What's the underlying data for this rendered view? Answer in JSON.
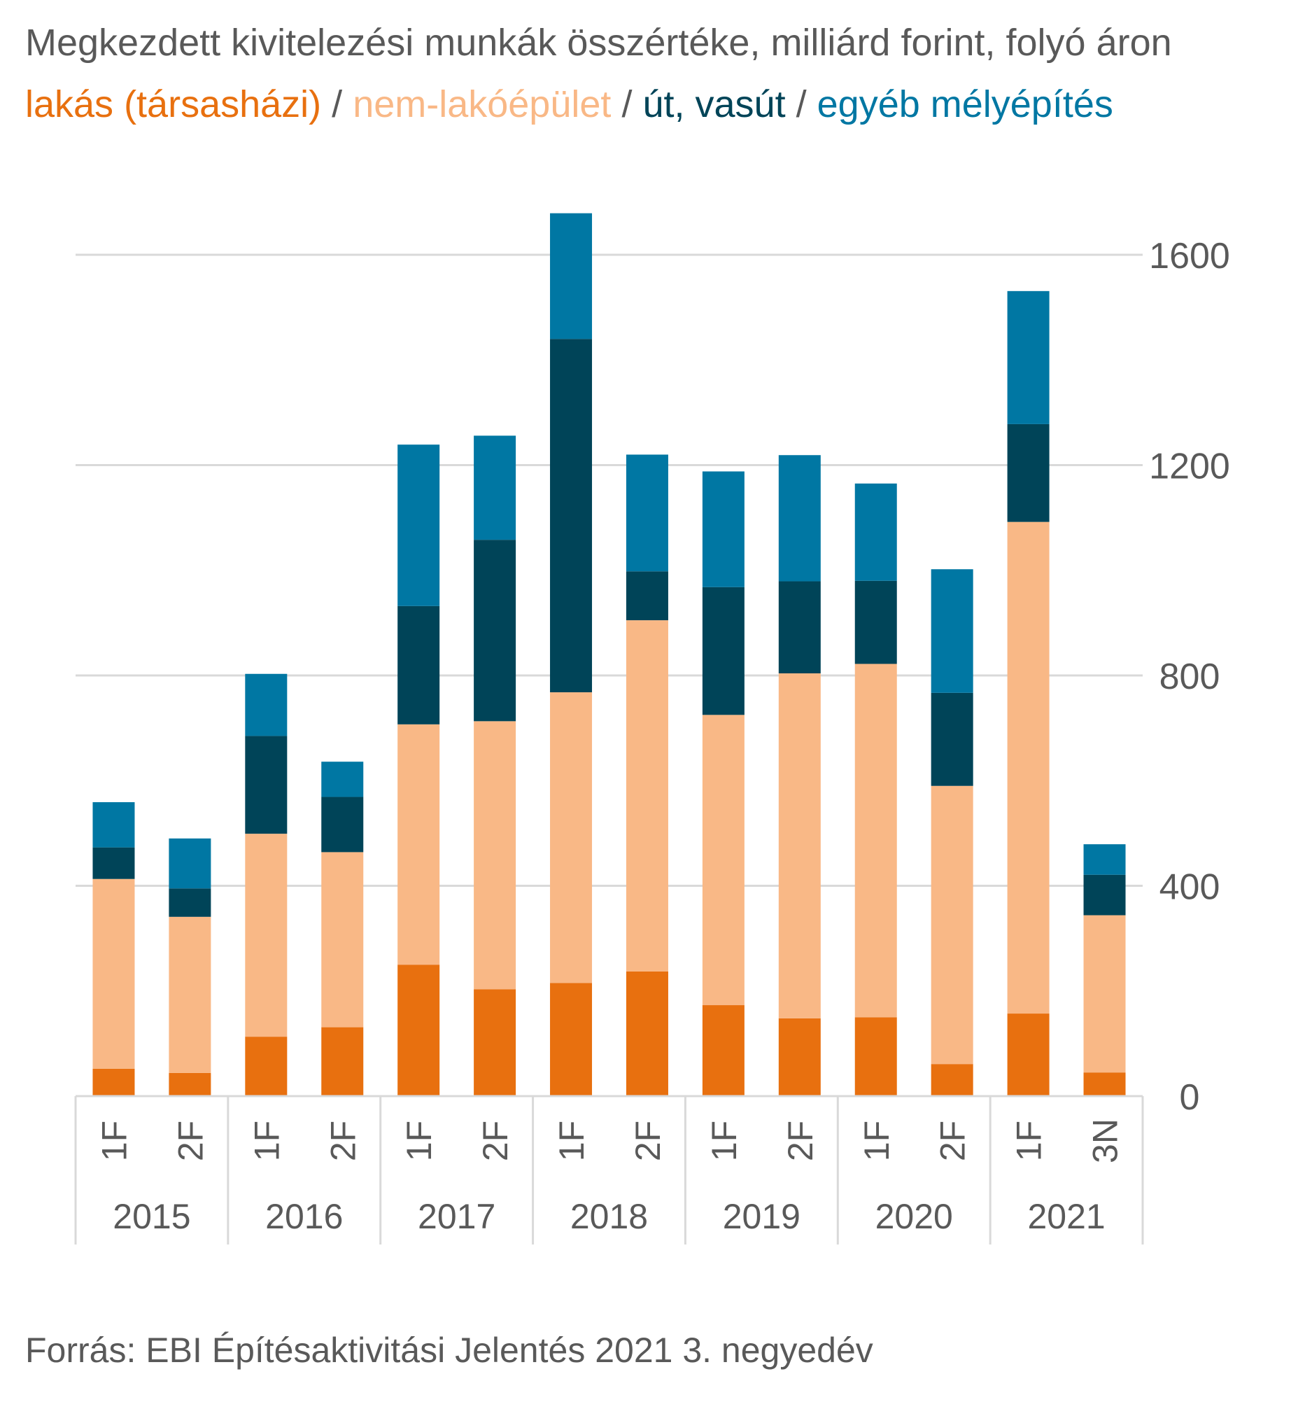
{
  "chart_data": {
    "type": "bar",
    "stacked": true,
    "title": "Megkezdett kivitelezési munkák összértéke, milliárd forint, folyó áron",
    "legend": [
      {
        "name": "lakás (társasházi)",
        "color": "#E8700F"
      },
      {
        "name": "nem-lakóépület",
        "color": "#F9B886"
      },
      {
        "name": "út, vasút",
        "color": "#004458"
      },
      {
        "name": "egyéb mélyépítés",
        "color": "#0077A3"
      }
    ],
    "separator": "/",
    "categories": [
      "1F",
      "2F",
      "1F",
      "2F",
      "1F",
      "2F",
      "1F",
      "2F",
      "1F",
      "2F",
      "1F",
      "2F",
      "1F",
      "3N"
    ],
    "groups": [
      {
        "label": "2015",
        "span": 2
      },
      {
        "label": "2016",
        "span": 2
      },
      {
        "label": "2017",
        "span": 2
      },
      {
        "label": "2018",
        "span": 2
      },
      {
        "label": "2019",
        "span": 2
      },
      {
        "label": "2020",
        "span": 2
      },
      {
        "label": "2021",
        "span": 2
      }
    ],
    "series": [
      {
        "name": "lakás (társasházi)",
        "color": "#E8700F",
        "values": [
          52,
          44,
          113,
          131,
          250,
          203,
          215,
          237,
          173,
          148,
          150,
          61,
          157,
          45
        ]
      },
      {
        "name": "nem-lakóépület",
        "color": "#F9B886",
        "values": [
          361,
          297,
          386,
          333,
          457,
          510,
          553,
          668,
          552,
          656,
          672,
          529,
          935,
          299
        ]
      },
      {
        "name": "út, vasút",
        "color": "#004458",
        "values": [
          60,
          54,
          186,
          105,
          225,
          345,
          672,
          93,
          243,
          175,
          158,
          177,
          186,
          77
        ]
      },
      {
        "name": "egyéb mélyépítés",
        "color": "#0077A3",
        "values": [
          86,
          95,
          118,
          67,
          307,
          198,
          239,
          222,
          220,
          240,
          185,
          235,
          253,
          58
        ]
      }
    ],
    "yaxis": {
      "min": 0,
      "max": 1600,
      "ticks": [
        0,
        400,
        800,
        1200,
        1600
      ],
      "position": "right",
      "gridlines": true
    },
    "xlabel": "",
    "ylabel": ""
  },
  "source": "Forrás: EBI Építésaktivitási Jelentés 2021 3. negyedév"
}
